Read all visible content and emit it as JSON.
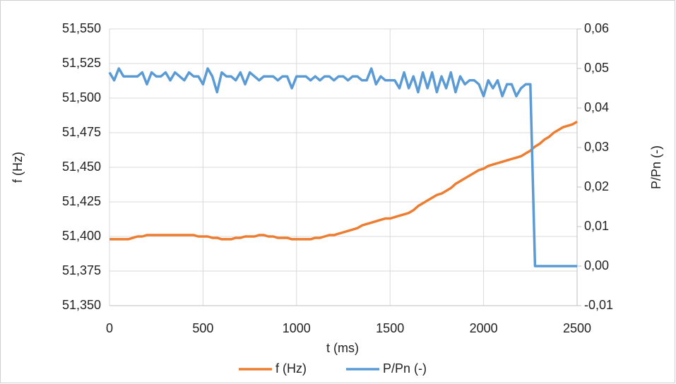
{
  "chart_data": {
    "type": "line",
    "xlabel": "t (ms)",
    "ylabel": "f (Hz)",
    "y2label": "P/Pn (-)",
    "x": [
      0,
      25,
      50,
      75,
      100,
      125,
      150,
      175,
      200,
      225,
      250,
      275,
      300,
      325,
      350,
      375,
      400,
      425,
      450,
      475,
      500,
      525,
      550,
      575,
      600,
      625,
      650,
      675,
      700,
      725,
      750,
      775,
      800,
      825,
      850,
      875,
      900,
      925,
      950,
      975,
      1000,
      1025,
      1050,
      1075,
      1100,
      1125,
      1150,
      1175,
      1200,
      1225,
      1250,
      1275,
      1300,
      1325,
      1350,
      1375,
      1400,
      1425,
      1450,
      1475,
      1500,
      1525,
      1550,
      1575,
      1600,
      1625,
      1650,
      1675,
      1700,
      1725,
      1750,
      1775,
      1800,
      1825,
      1850,
      1875,
      1900,
      1925,
      1950,
      1975,
      2000,
      2025,
      2050,
      2075,
      2100,
      2125,
      2150,
      2175,
      2200,
      2225,
      2250,
      2275,
      2300,
      2325,
      2350,
      2375,
      2400,
      2425,
      2450,
      2475,
      2500
    ],
    "series": [
      {
        "name": "f (Hz)",
        "color": "#ed7d31",
        "values": [
          51.398,
          51.398,
          51.398,
          51.398,
          51.398,
          51.399,
          51.4,
          51.4,
          51.401,
          51.401,
          51.401,
          51.401,
          51.401,
          51.401,
          51.401,
          51.401,
          51.401,
          51.401,
          51.401,
          51.4,
          51.4,
          51.4,
          51.399,
          51.399,
          51.398,
          51.398,
          51.398,
          51.399,
          51.399,
          51.4,
          51.4,
          51.4,
          51.401,
          51.401,
          51.4,
          51.4,
          51.399,
          51.399,
          51.399,
          51.398,
          51.398,
          51.398,
          51.398,
          51.398,
          51.399,
          51.399,
          51.4,
          51.401,
          51.401,
          51.402,
          51.403,
          51.404,
          51.405,
          51.406,
          51.408,
          51.409,
          51.41,
          51.411,
          51.412,
          51.413,
          51.413,
          51.414,
          51.415,
          51.416,
          51.417,
          51.419,
          51.422,
          51.424,
          51.426,
          51.428,
          51.43,
          51.431,
          51.433,
          51.435,
          51.438,
          51.44,
          51.442,
          51.444,
          51.446,
          51.448,
          51.449,
          51.451,
          51.452,
          51.453,
          51.454,
          51.455,
          51.456,
          51.457,
          51.458,
          51.46,
          51.462,
          51.465,
          51.467,
          51.47,
          51.472,
          51.475,
          51.477,
          51.479,
          51.48,
          51.481,
          51.483
        ]
      },
      {
        "name": "P/Pn (-)",
        "color": "#5b9bd5",
        "axis": "y2",
        "values": [
          0.049,
          0.047,
          0.05,
          0.048,
          0.048,
          0.048,
          0.048,
          0.049,
          0.046,
          0.049,
          0.048,
          0.048,
          0.049,
          0.047,
          0.049,
          0.048,
          0.047,
          0.049,
          0.048,
          0.048,
          0.046,
          0.05,
          0.048,
          0.044,
          0.049,
          0.048,
          0.048,
          0.047,
          0.049,
          0.046,
          0.049,
          0.048,
          0.047,
          0.048,
          0.048,
          0.048,
          0.047,
          0.048,
          0.048,
          0.045,
          0.048,
          0.048,
          0.048,
          0.047,
          0.048,
          0.047,
          0.048,
          0.048,
          0.047,
          0.048,
          0.048,
          0.047,
          0.048,
          0.048,
          0.047,
          0.047,
          0.05,
          0.046,
          0.048,
          0.047,
          0.047,
          0.047,
          0.045,
          0.049,
          0.045,
          0.048,
          0.044,
          0.049,
          0.045,
          0.049,
          0.044,
          0.048,
          0.045,
          0.049,
          0.044,
          0.048,
          0.046,
          0.047,
          0.047,
          0.046,
          0.043,
          0.047,
          0.045,
          0.047,
          0.043,
          0.046,
          0.046,
          0.043,
          0.045,
          0.046,
          0.046,
          0.0,
          0.0,
          0.0,
          0.0,
          0.0,
          0.0,
          0.0,
          0.0,
          0.0,
          0.0
        ]
      }
    ],
    "xlim": [
      0,
      2500
    ],
    "xticks": [
      0,
      500,
      1000,
      1500,
      2000,
      2500
    ],
    "ylim": [
      51.35,
      51.55
    ],
    "yticks": [
      {
        "value": 51.35,
        "label": "51,350"
      },
      {
        "value": 51.375,
        "label": "51,375"
      },
      {
        "value": 51.4,
        "label": "51,400"
      },
      {
        "value": 51.425,
        "label": "51,425"
      },
      {
        "value": 51.45,
        "label": "51,450"
      },
      {
        "value": 51.475,
        "label": "51,475"
      },
      {
        "value": 51.5,
        "label": "51,500"
      },
      {
        "value": 51.525,
        "label": "51,525"
      },
      {
        "value": 51.55,
        "label": "51,550"
      }
    ],
    "y2lim": [
      -0.01,
      0.06
    ],
    "y2ticks": [
      {
        "value": -0.01,
        "label": "-0,01"
      },
      {
        "value": 0,
        "label": "0,00"
      },
      {
        "value": 0.01,
        "label": "0,01"
      },
      {
        "value": 0.02,
        "label": "0,02"
      },
      {
        "value": 0.03,
        "label": "0,03"
      },
      {
        "value": 0.04,
        "label": "0,04"
      },
      {
        "value": 0.05,
        "label": "0,05"
      },
      {
        "value": 0.06,
        "label": "0,06"
      }
    ],
    "grid": true,
    "legend": "bottom"
  }
}
